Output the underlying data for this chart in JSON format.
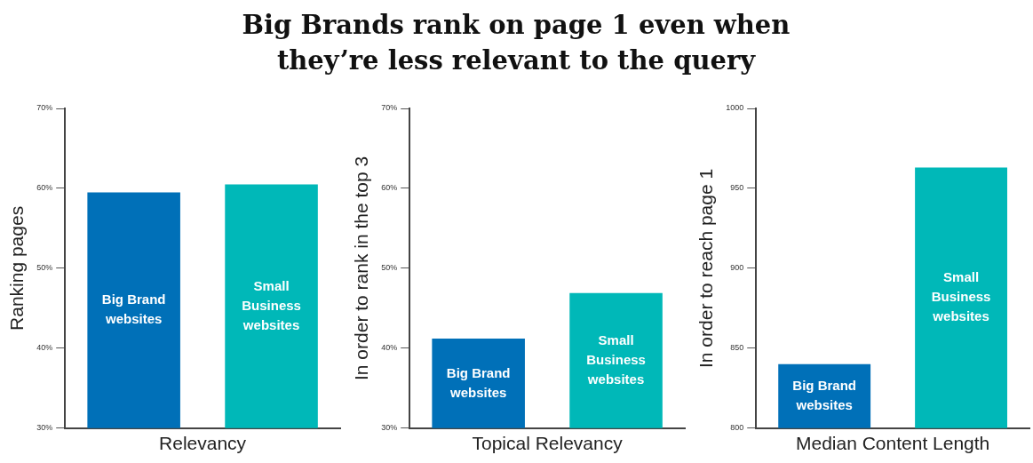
{
  "chart_data": [
    {
      "type": "bar",
      "title": "Big Brands rank on page 1 even when they’re less relevant to the query",
      "xlabel": "Relevancy",
      "ylabel": "Ranking pages",
      "categories": [
        "Big Brand websites",
        "Small Business websites"
      ],
      "values": [
        59.5,
        60.5
      ],
      "colors": [
        "#0070b8",
        "#00b8b8"
      ],
      "ylim": [
        30,
        70
      ],
      "yticks": [
        {
          "value": 30,
          "label": "30%"
        },
        {
          "value": 40,
          "label": "40%"
        },
        {
          "value": 50,
          "label": "50%"
        },
        {
          "value": 60,
          "label": "60%"
        },
        {
          "value": 70,
          "label": "70%"
        }
      ],
      "grid": false,
      "legend": false
    },
    {
      "type": "bar",
      "xlabel": "Topical Relevancy",
      "ylabel": "In order to rank in the top 3",
      "categories": [
        "Big Brand websites",
        "Small Business websites"
      ],
      "values": [
        41.2,
        46.9
      ],
      "colors": [
        "#0070b8",
        "#00b8b8"
      ],
      "ylim": [
        30,
        70
      ],
      "yticks": [
        {
          "value": 30,
          "label": "30%"
        },
        {
          "value": 40,
          "label": "40%"
        },
        {
          "value": 50,
          "label": "50%"
        },
        {
          "value": 60,
          "label": "60%"
        },
        {
          "value": 70,
          "label": "70%"
        }
      ],
      "grid": false,
      "legend": false
    },
    {
      "type": "bar",
      "xlabel": "Median Content Length",
      "ylabel": "In order to reach page 1",
      "categories": [
        "Big Brand websites",
        "Small Business websites"
      ],
      "values": [
        840,
        963
      ],
      "colors": [
        "#0070b8",
        "#00b8b8"
      ],
      "ylim": [
        800,
        1000
      ],
      "yticks": [
        800,
        850,
        900,
        950,
        1000
      ],
      "grid": false,
      "legend": false
    }
  ]
}
